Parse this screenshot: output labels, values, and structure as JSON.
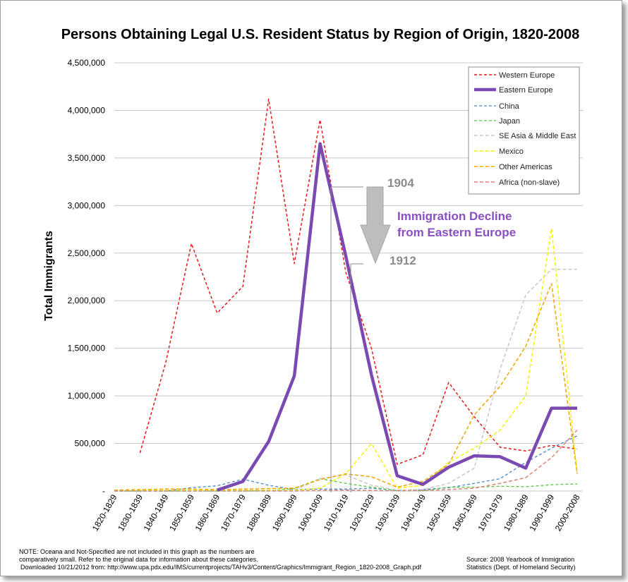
{
  "chart_data": {
    "type": "line",
    "title": "Persons Obtaining Legal U.S. Resident Status by Region of Origin, 1820-2008",
    "ylabel": "Total Immigrants",
    "xlabel": "",
    "ylim": [
      0,
      4500000
    ],
    "yticks": [
      0,
      500000,
      1000000,
      1500000,
      2000000,
      2500000,
      3000000,
      3500000,
      4000000,
      4500000
    ],
    "ytick_labels": [
      "-",
      "500,000",
      "1,000,000",
      "1,500,000",
      "2,000,000",
      "2,500,000",
      "3,000,000",
      "3,500,000",
      "4,000,000",
      "4,500,000"
    ],
    "grid": true,
    "legend_position": "top-right",
    "categories": [
      "1820-1829",
      "1830-1839",
      "1840-1849",
      "1850-1859",
      "1860-1869",
      "1870-1879",
      "1880-1889",
      "1890-1899",
      "1900-1909",
      "1910-1919",
      "1920-1929",
      "1930-1939",
      "1940-1949",
      "1950-1959",
      "1960-1969",
      "1970-1979",
      "1980-1989",
      "1990-1999",
      "2000-2008"
    ],
    "series": [
      {
        "name": "Western Europe",
        "color": "#e41a1c",
        "dash": "4,3",
        "width": 1.5,
        "values": [
          null,
          400000,
          1350000,
          2600000,
          1870000,
          2150000,
          4120000,
          2390000,
          3900000,
          2300000,
          1500000,
          280000,
          380000,
          1140000,
          780000,
          460000,
          420000,
          480000,
          440000
        ]
      },
      {
        "name": "Eastern Europe",
        "color": "#7b49b2",
        "dash": "",
        "width": 4.5,
        "values": [
          null,
          null,
          null,
          null,
          10000,
          100000,
          520000,
          1210000,
          3650000,
          2470000,
          1220000,
          160000,
          70000,
          250000,
          370000,
          360000,
          240000,
          870000,
          870000
        ]
      },
      {
        "name": "China",
        "color": "#4a86c8",
        "dash": "4,3",
        "width": 1.3,
        "values": [
          0,
          0,
          0,
          35000,
          55000,
          125000,
          60000,
          15000,
          20000,
          20000,
          30000,
          5000,
          15000,
          35000,
          80000,
          130000,
          300000,
          450000,
          580000
        ]
      },
      {
        "name": "Japan",
        "color": "#56c43c",
        "dash": "4,3",
        "width": 1.3,
        "values": [
          0,
          0,
          0,
          0,
          0,
          0,
          2000,
          25000,
          130000,
          80000,
          40000,
          2000,
          2000,
          40000,
          40000,
          50000,
          45000,
          65000,
          75000
        ]
      },
      {
        "name": "SE Asia & Middle East",
        "color": "#c8c8c8",
        "dash": "5,3",
        "width": 1.5,
        "values": [
          0,
          0,
          0,
          0,
          5000,
          8000,
          10000,
          10000,
          130000,
          170000,
          60000,
          10000,
          15000,
          80000,
          240000,
          1280000,
          2060000,
          2330000,
          2330000
        ]
      },
      {
        "name": "Mexico",
        "color": "#f4f40a",
        "dash": "5,3",
        "width": 1.5,
        "values": [
          5000,
          5000,
          5000,
          5000,
          5000,
          5000,
          5000,
          5000,
          30000,
          180000,
          500000,
          30000,
          60000,
          300000,
          450000,
          640000,
          1000000,
          2760000,
          180000
        ]
      },
      {
        "name": "Other Americas",
        "color": "#f0a500",
        "dash": "5,3",
        "width": 1.5,
        "values": [
          10000,
          15000,
          20000,
          20000,
          15000,
          20000,
          25000,
          30000,
          120000,
          180000,
          150000,
          40000,
          100000,
          280000,
          800000,
          1100000,
          1520000,
          2180000,
          180000
        ]
      },
      {
        "name": "Africa (non-slave)",
        "color": "#d9827a",
        "dash": "5,3",
        "width": 1.5,
        "values": [
          0,
          0,
          0,
          0,
          0,
          0,
          0,
          0,
          5000,
          10000,
          5000,
          2000,
          5000,
          15000,
          30000,
          80000,
          140000,
          350000,
          640000
        ]
      }
    ],
    "annotations": {
      "year_start": "1904",
      "year_end": "1912",
      "decline_line1": "Immigration Decline",
      "decline_line2": "from Eastern Europe"
    }
  },
  "notes": {
    "note_line1": "NOTE:  Oceana and Not-Specified are not included in this graph as the numbers are",
    "note_line2": "comparatively small.  Refer to the original data for information about these categories.",
    "downloaded": "Downloaded 10/21/2012 from:  http://www.upa.pdx.edu/IMS/currentprojects/TAHv3/Content/Graphics/Immigrant_Region_1820-2008_Graph.pdf",
    "source_line1": "Source:  2008 Yearbook of Immigration",
    "source_line2": "Statistics (Dept. of Homeland Security)"
  }
}
